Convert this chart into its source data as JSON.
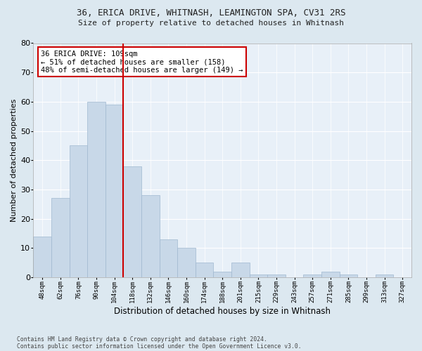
{
  "title1": "36, ERICA DRIVE, WHITNASH, LEAMINGTON SPA, CV31 2RS",
  "title2": "Size of property relative to detached houses in Whitnash",
  "xlabel": "Distribution of detached houses by size in Whitnash",
  "ylabel": "Number of detached properties",
  "categories": [
    "48sqm",
    "62sqm",
    "76sqm",
    "90sqm",
    "104sqm",
    "118sqm",
    "132sqm",
    "146sqm",
    "160sqm",
    "174sqm",
    "188sqm",
    "201sqm",
    "215sqm",
    "229sqm",
    "243sqm",
    "257sqm",
    "271sqm",
    "285sqm",
    "299sqm",
    "313sqm",
    "327sqm"
  ],
  "values": [
    14,
    27,
    45,
    60,
    59,
    38,
    28,
    13,
    10,
    5,
    2,
    5,
    1,
    1,
    0,
    1,
    2,
    1,
    0,
    1,
    0
  ],
  "bar_color": "#c8d8e8",
  "bar_edge_color": "#a0b8d0",
  "vline_x": 4.5,
  "vline_color": "#cc0000",
  "annotation_text": "36 ERICA DRIVE: 109sqm\n← 51% of detached houses are smaller (158)\n48% of semi-detached houses are larger (149) →",
  "annotation_box_color": "white",
  "annotation_box_edgecolor": "#cc0000",
  "ylim": [
    0,
    80
  ],
  "yticks": [
    0,
    10,
    20,
    30,
    40,
    50,
    60,
    70,
    80
  ],
  "footnote1": "Contains HM Land Registry data © Crown copyright and database right 2024.",
  "footnote2": "Contains public sector information licensed under the Open Government Licence v3.0.",
  "bg_color": "#dce8f0",
  "plot_bg_color": "#e8f0f8"
}
